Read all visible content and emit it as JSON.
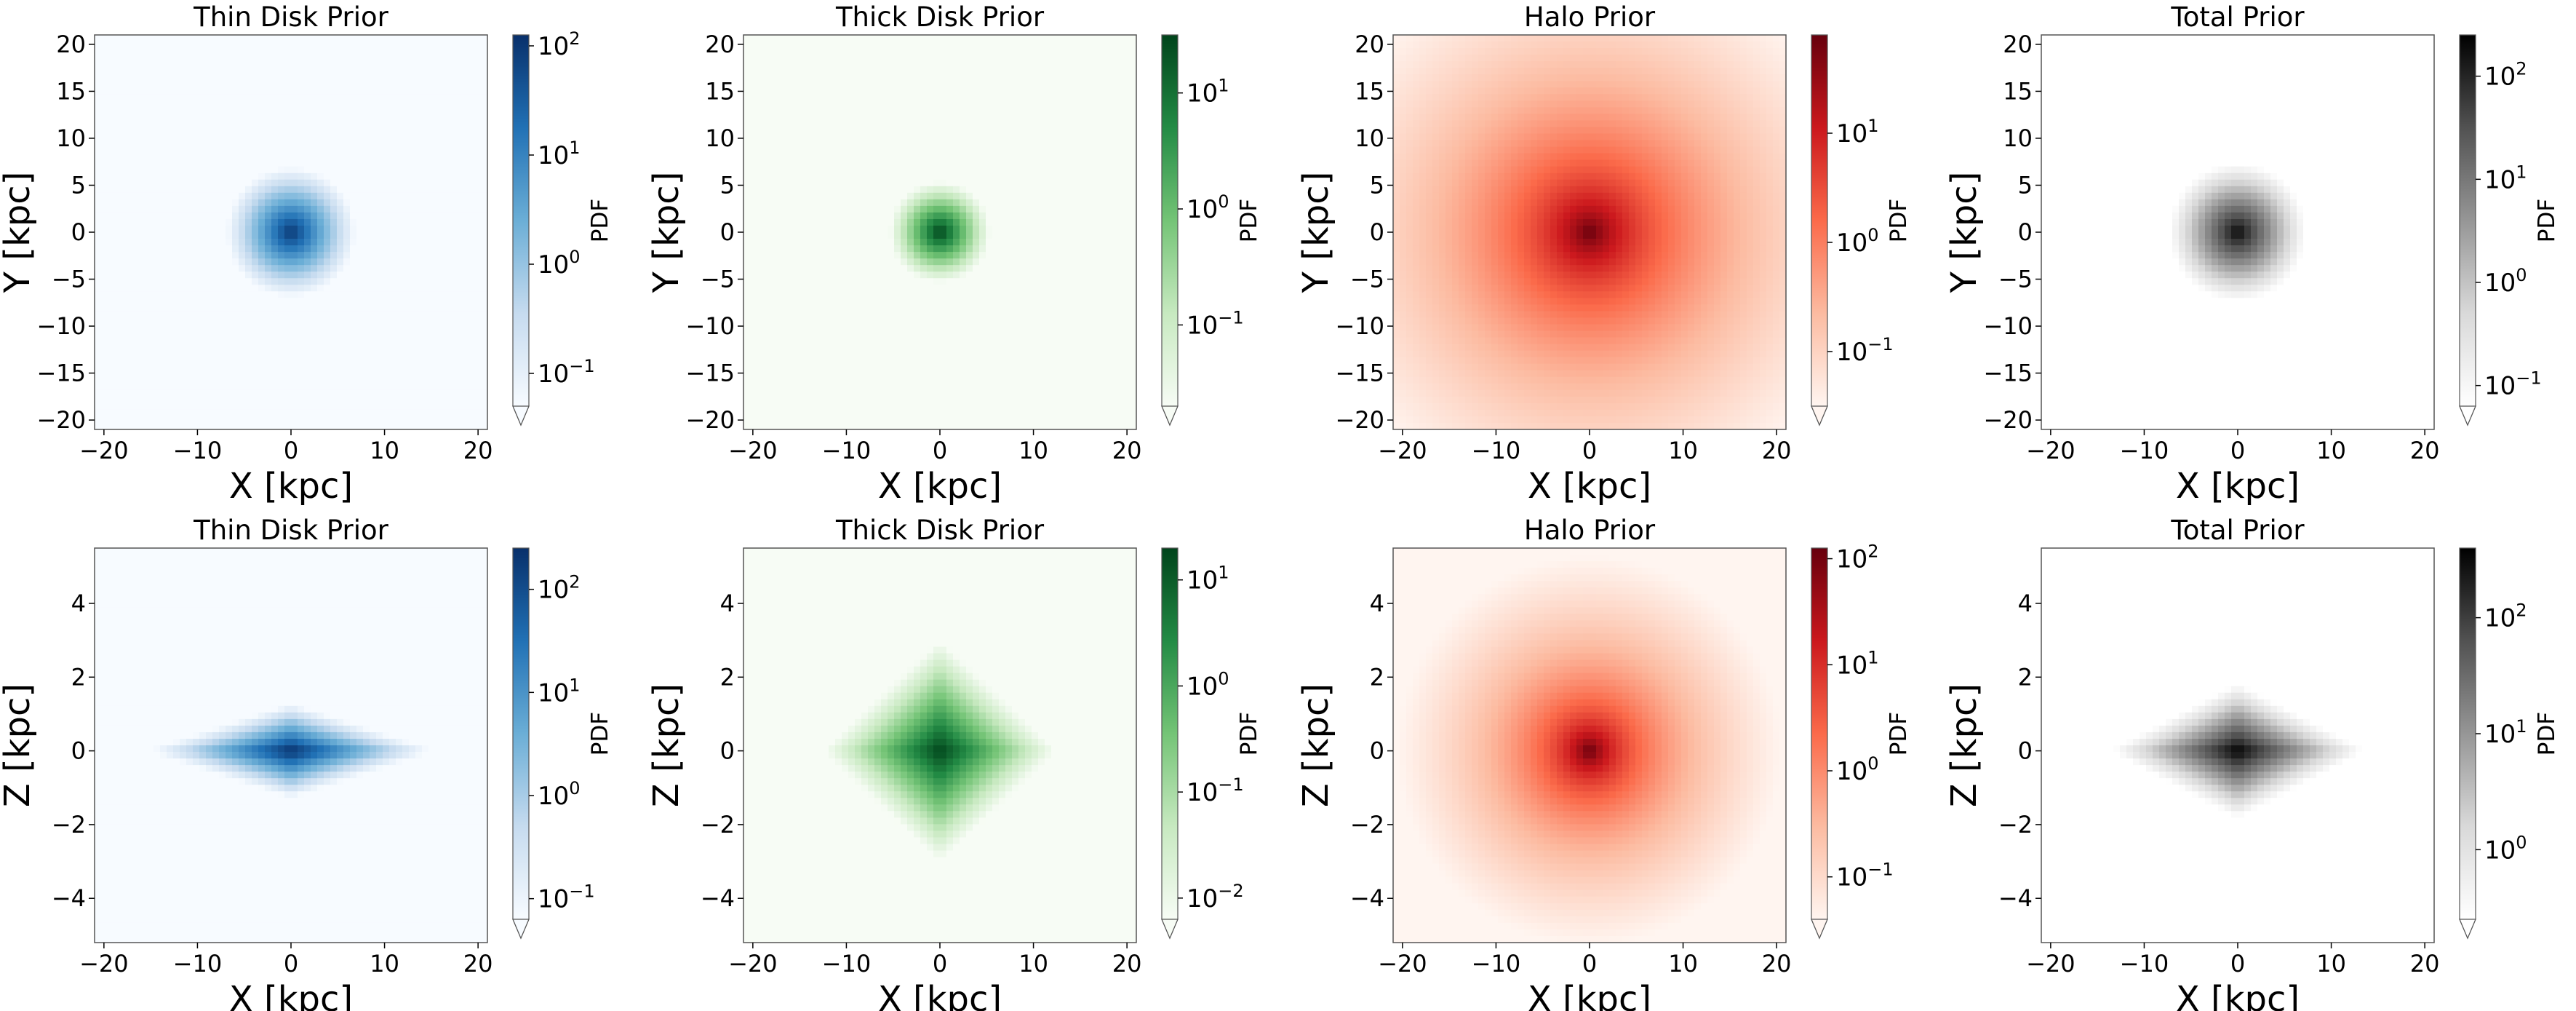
{
  "chart_data": [
    {
      "type": "heatmap",
      "panel": "thin-disk-xy",
      "title": "Thin Disk Prior",
      "xlabel": "X [kpc]",
      "ylabel": "Y [kpc]",
      "xlim": [
        -21,
        21
      ],
      "ylim": [
        -21,
        21
      ],
      "x_ticks": [
        "−20",
        "−10",
        "0",
        "10",
        "20"
      ],
      "y_ticks": [
        "20",
        "15",
        "10",
        "5",
        "0",
        "−5",
        "−10",
        "−15",
        "−20"
      ],
      "y_tick_values": [
        20,
        15,
        10,
        5,
        0,
        -5,
        -10,
        -15,
        -20
      ],
      "colormap": "Blues",
      "colorbar_label": "PDF",
      "colorbar_ticks": [
        "10",
        "10",
        "10",
        "10"
      ],
      "colorbar_exps": [
        "2",
        "1",
        "0",
        "−1"
      ],
      "colorbar_range": [
        -1.3,
        2.1
      ],
      "profile": {
        "kind": "exp-radial",
        "peak": 2.0,
        "rx": 10,
        "ry": 10
      }
    },
    {
      "type": "heatmap",
      "panel": "thick-disk-xy",
      "title": "Thick Disk Prior",
      "xlabel": "X [kpc]",
      "ylabel": "Y [kpc]",
      "xlim": [
        -21,
        21
      ],
      "ylim": [
        -21,
        21
      ],
      "x_ticks": [
        "−20",
        "−10",
        "0",
        "10",
        "20"
      ],
      "y_ticks": [
        "20",
        "15",
        "10",
        "5",
        "0",
        "−5",
        "−10",
        "−15",
        "−20"
      ],
      "y_tick_values": [
        20,
        15,
        10,
        5,
        0,
        -5,
        -10,
        -15,
        -20
      ],
      "colormap": "Greens",
      "colorbar_label": "PDF",
      "colorbar_ticks": [
        "10",
        "10",
        "10"
      ],
      "colorbar_exps": [
        "1",
        "0",
        "−1"
      ],
      "colorbar_range": [
        -1.7,
        1.5
      ],
      "profile": {
        "kind": "exp-radial",
        "peak": 1.5,
        "rx": 8,
        "ry": 8
      }
    },
    {
      "type": "heatmap",
      "panel": "halo-xy",
      "title": "Halo Prior",
      "xlabel": "X [kpc]",
      "ylabel": "Y [kpc]",
      "xlim": [
        -21,
        21
      ],
      "ylim": [
        -21,
        21
      ],
      "x_ticks": [
        "−20",
        "−10",
        "0",
        "10",
        "20"
      ],
      "y_ticks": [
        "20",
        "15",
        "10",
        "5",
        "0",
        "−5",
        "−10",
        "−15",
        "−20"
      ],
      "y_tick_values": [
        20,
        15,
        10,
        5,
        0,
        -5,
        -10,
        -15,
        -20
      ],
      "colormap": "Reds",
      "colorbar_label": "PDF",
      "colorbar_ticks": [
        "10",
        "10",
        "10"
      ],
      "colorbar_exps": [
        "1",
        "0",
        "−1"
      ],
      "colorbar_range": [
        -1.5,
        1.9
      ],
      "profile": {
        "kind": "powerlaw",
        "peak": 1.9,
        "rx": 11,
        "ry": 11
      }
    },
    {
      "type": "heatmap",
      "panel": "total-xy",
      "title": "Total Prior",
      "xlabel": "X [kpc]",
      "ylabel": "Y [kpc]",
      "xlim": [
        -21,
        21
      ],
      "ylim": [
        -21,
        21
      ],
      "x_ticks": [
        "−20",
        "−10",
        "0",
        "10",
        "20"
      ],
      "y_ticks": [
        "20",
        "15",
        "10",
        "5",
        "0",
        "−5",
        "−10",
        "−15",
        "−20"
      ],
      "y_tick_values": [
        20,
        15,
        10,
        5,
        0,
        -5,
        -10,
        -15,
        -20
      ],
      "colormap": "Greys",
      "colorbar_label": "PDF",
      "colorbar_ticks": [
        "10",
        "10",
        "10",
        "10"
      ],
      "colorbar_exps": [
        "2",
        "1",
        "0",
        "−1"
      ],
      "colorbar_range": [
        -1.2,
        2.4
      ],
      "profile": {
        "kind": "exp-radial",
        "peak": 2.3,
        "rx": 10,
        "ry": 10
      }
    },
    {
      "type": "heatmap",
      "panel": "thin-disk-xz",
      "title": "Thin Disk Prior",
      "xlabel": "X [kpc]",
      "ylabel": "Z [kpc]",
      "xlim": [
        -21,
        21
      ],
      "ylim": [
        -5.2,
        5.5
      ],
      "x_ticks": [
        "−20",
        "−10",
        "0",
        "10",
        "20"
      ],
      "y_ticks": [
        "4",
        "2",
        "0",
        "−2",
        "−4"
      ],
      "y_tick_values": [
        4,
        2,
        0,
        -2,
        -4
      ],
      "colormap": "Blues",
      "colorbar_label": "PDF",
      "colorbar_ticks": [
        "10",
        "10",
        "10",
        "10"
      ],
      "colorbar_exps": [
        "2",
        "1",
        "0",
        "−1"
      ],
      "colorbar_range": [
        -1.2,
        2.4
      ],
      "profile": {
        "kind": "exp-diamond",
        "peak": 2.4,
        "rx": 6,
        "rz": 0.5
      }
    },
    {
      "type": "heatmap",
      "panel": "thick-disk-xz",
      "title": "Thick Disk Prior",
      "xlabel": "X [kpc]",
      "ylabel": "Z [kpc]",
      "xlim": [
        -21,
        21
      ],
      "ylim": [
        -5.2,
        5.5
      ],
      "x_ticks": [
        "−20",
        "−10",
        "0",
        "10",
        "20"
      ],
      "y_ticks": [
        "4",
        "2",
        "0",
        "−2",
        "−4"
      ],
      "y_tick_values": [
        4,
        2,
        0,
        -2,
        -4
      ],
      "colormap": "Greens",
      "colorbar_label": "PDF",
      "colorbar_ticks": [
        "10",
        "10",
        "10",
        "10"
      ],
      "colorbar_exps": [
        "1",
        "0",
        "−1",
        "−2"
      ],
      "colorbar_range": [
        -2.2,
        1.3
      ],
      "profile": {
        "kind": "exp-diamond",
        "peak": 1.3,
        "rx": 5,
        "rz": 1.2
      }
    },
    {
      "type": "heatmap",
      "panel": "halo-xz",
      "title": "Halo Prior",
      "xlabel": "X [kpc]",
      "ylabel": "Z [kpc]",
      "xlim": [
        -21,
        21
      ],
      "ylim": [
        -5.2,
        5.5
      ],
      "x_ticks": [
        "−20",
        "−10",
        "0",
        "10",
        "20"
      ],
      "y_ticks": [
        "4",
        "2",
        "0",
        "−2",
        "−4"
      ],
      "y_tick_values": [
        4,
        2,
        0,
        -2,
        -4
      ],
      "colormap": "Reds",
      "colorbar_label": "PDF",
      "colorbar_ticks": [
        "10",
        "10",
        "10",
        "10"
      ],
      "colorbar_exps": [
        "2",
        "1",
        "0",
        "−1"
      ],
      "colorbar_range": [
        -1.4,
        2.1
      ],
      "profile": {
        "kind": "powerlaw",
        "peak": 2.1,
        "rx": 7,
        "ry": 1.8
      }
    },
    {
      "type": "heatmap",
      "panel": "total-xz",
      "title": "Total Prior",
      "xlabel": "X [kpc]",
      "ylabel": "Z [kpc]",
      "xlim": [
        -21,
        21
      ],
      "ylim": [
        -5.2,
        5.5
      ],
      "x_ticks": [
        "−20",
        "−10",
        "0",
        "10",
        "20"
      ],
      "y_ticks": [
        "4",
        "2",
        "0",
        "−2",
        "−4"
      ],
      "y_tick_values": [
        4,
        2,
        0,
        -2,
        -4
      ],
      "colormap": "Greys",
      "colorbar_label": "PDF",
      "colorbar_ticks": [
        "10",
        "10",
        "10"
      ],
      "colorbar_exps": [
        "2",
        "1",
        "0"
      ],
      "colorbar_range": [
        -0.6,
        2.6
      ],
      "profile": {
        "kind": "exp-diamond",
        "peak": 2.6,
        "rx": 6,
        "rz": 0.8
      }
    }
  ]
}
